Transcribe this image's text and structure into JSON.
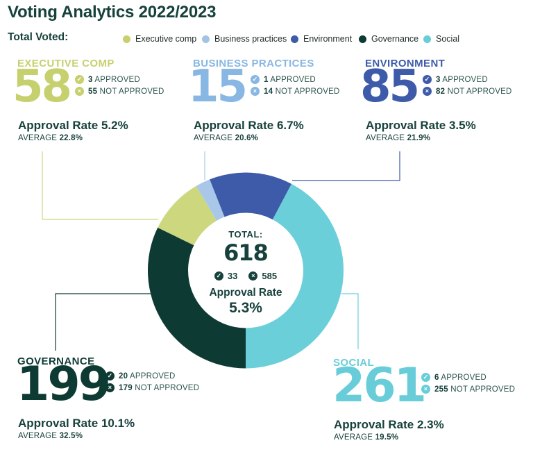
{
  "header": {
    "title": "Voting Analytics 2022/2023",
    "legend_title": "Total Voted:"
  },
  "legend": {
    "items": [
      {
        "label": "Executive comp",
        "color": "#c6d06e"
      },
      {
        "label": "Business practices",
        "color": "#a3c3e6"
      },
      {
        "label": "Environment",
        "color": "#3e5ba9"
      },
      {
        "label": "Governance",
        "color": "#0e3a34"
      },
      {
        "label": "Social",
        "color": "#68cdd9"
      }
    ]
  },
  "icons": {
    "check": "✓",
    "cross": "×"
  },
  "colors": {
    "text": "#17413c",
    "muted_text": "#2b544d",
    "legend_text": "#1e2b28"
  },
  "cards": [
    {
      "id": "executive-comp",
      "title": "EXECUTIVE COMP",
      "total": "58",
      "approved": "3",
      "approved_label": "APPROVED",
      "not_approved": "55",
      "not_approved_label": "NOT APPROVED",
      "approval_rate_text": "Approval Rate 5.2%",
      "average_label": "AVERAGE",
      "average_value": "22.8%",
      "color": "#c6d06e"
    },
    {
      "id": "business-practices",
      "title": "BUSINESS PRACTICES",
      "total": "15",
      "approved": "1",
      "approved_label": "APPROVED",
      "not_approved": "14",
      "not_approved_label": "NOT APPROVED",
      "approval_rate_text": "Approval Rate 6.7%",
      "average_label": "AVERAGE",
      "average_value": "20.6%",
      "color": "#87b7e2"
    },
    {
      "id": "environment",
      "title": "ENVIRONMENT",
      "total": "85",
      "approved": "3",
      "approved_label": "APPROVED",
      "not_approved": "82",
      "not_approved_label": "NOT APPROVED",
      "approval_rate_text": "Approval Rate 3.5%",
      "average_label": "AVERAGE",
      "average_value": "21.9%",
      "color": "#3e5ba9"
    },
    {
      "id": "governance",
      "title": "GOVERNANCE",
      "total": "199",
      "approved": "20",
      "approved_label": "APPROVED",
      "not_approved": "179",
      "not_approved_label": "NOT APPROVED",
      "approval_rate_text": "Approval Rate 10.1%",
      "average_label": "AVERAGE",
      "average_value": "32.5%",
      "color": "#0e3a34"
    },
    {
      "id": "social",
      "title": "SOCIAL",
      "total": "261",
      "approved": "6",
      "approved_label": "APPROVED",
      "not_approved": "255",
      "not_approved_label": "NOT APPROVED",
      "approval_rate_text": "Approval Rate 2.3%",
      "average_label": "AVERAGE",
      "average_value": "19.5%",
      "color": "#68cdd9"
    }
  ],
  "donut_center": {
    "total_label": "TOTAL:",
    "total": "618",
    "approved": "33",
    "not_approved": "585",
    "rate_label": "Approval Rate",
    "rate_value": "5.3%"
  },
  "chart_data": {
    "type": "pie",
    "title": "Voting Analytics 2022/2023",
    "legend_title": "Total Voted:",
    "legend_position": "top",
    "categories": [
      "Executive comp",
      "Business practices",
      "Environment",
      "Governance",
      "Social"
    ],
    "values": [
      58,
      15,
      85,
      199,
      261
    ],
    "approved": [
      3,
      1,
      3,
      20,
      6
    ],
    "not_approved": [
      55,
      14,
      82,
      179,
      255
    ],
    "approval_rate_pct": [
      5.2,
      6.7,
      3.5,
      10.1,
      2.3
    ],
    "average_pct": [
      22.8,
      20.6,
      21.9,
      32.5,
      19.5
    ],
    "total": 618,
    "total_approved": 33,
    "total_not_approved": 585,
    "total_approval_rate_pct": 5.3,
    "donut": {
      "draw_order_clockwise": [
        "Executive comp",
        "Business practices",
        "Environment",
        "Social",
        "Governance"
      ],
      "start_angle_deg_from_top": -64.1,
      "slice_colors": {
        "Executive comp": "#cdd77e",
        "Business practices": "#a9c7e8",
        "Environment": "#3e5ba9",
        "Social": "#6bcfda",
        "Governance": "#0e3a34"
      }
    }
  }
}
